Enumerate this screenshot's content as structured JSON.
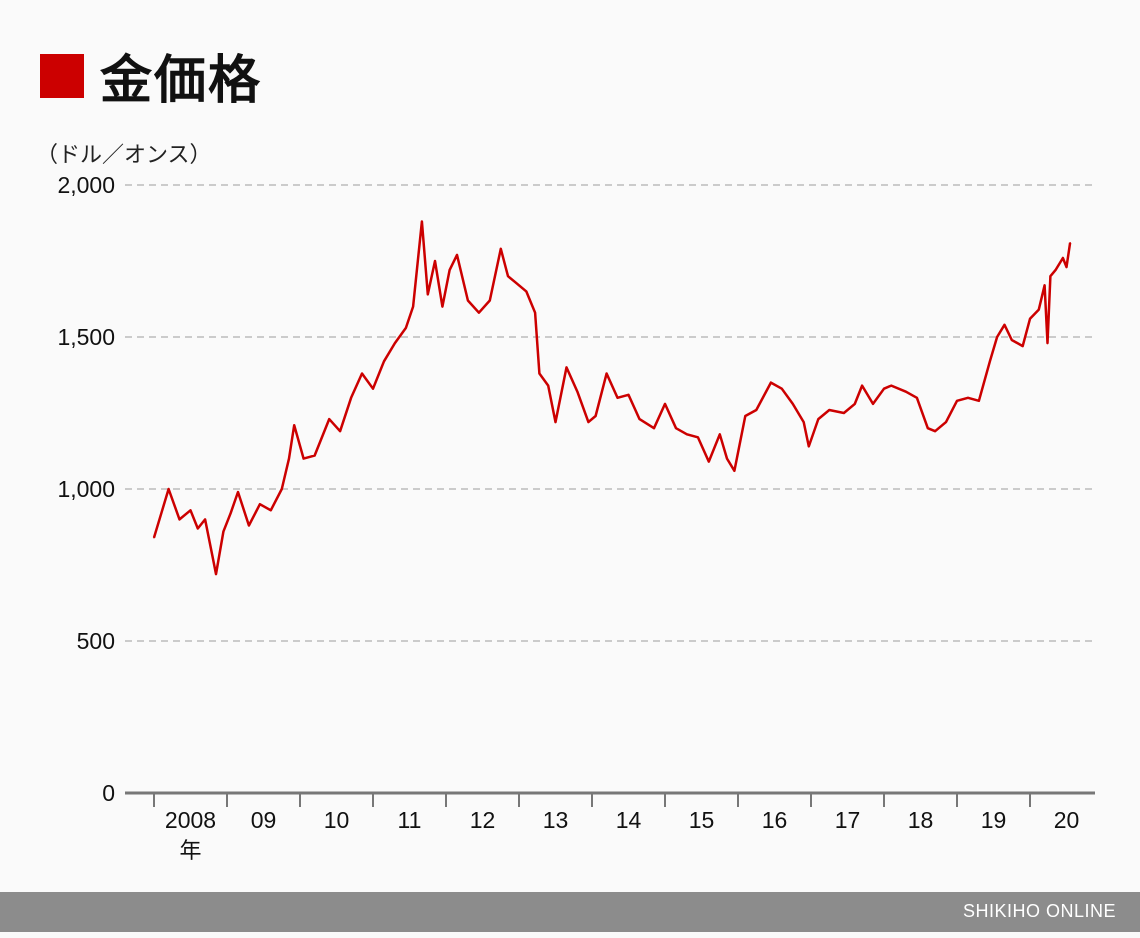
{
  "title": "金価格",
  "footer": "SHIKIHO ONLINE",
  "colors": {
    "accent": "#cc0000",
    "footer": "#8c8c8c"
  },
  "chart_data": {
    "type": "line",
    "title": "金価格",
    "ylabel": "（ドル／オンス）",
    "xlabel": "",
    "ylim": [
      0,
      2000
    ],
    "xlim": [
      2008,
      2021
    ],
    "grid": true,
    "yticks": [
      {
        "value": 0,
        "label": "0"
      },
      {
        "value": 500,
        "label": "500"
      },
      {
        "value": 1000,
        "label": "1,000"
      },
      {
        "value": 1500,
        "label": "1,500"
      },
      {
        "value": 2000,
        "label": "2,000"
      }
    ],
    "xticks": [
      "2008",
      "09",
      "10",
      "11",
      "12",
      "13",
      "14",
      "15",
      "16",
      "17",
      "18",
      "19",
      "20"
    ],
    "xtick_suffix": "年",
    "series": [
      {
        "name": "金価格",
        "color": "#cc0000",
        "x": [
          2008.0,
          2008.1,
          2008.2,
          2008.35,
          2008.5,
          2008.6,
          2008.7,
          2008.8,
          2008.85,
          2008.95,
          2009.05,
          2009.15,
          2009.3,
          2009.45,
          2009.6,
          2009.75,
          2009.85,
          2009.92,
          2010.05,
          2010.2,
          2010.4,
          2010.55,
          2010.7,
          2010.85,
          2011.0,
          2011.15,
          2011.3,
          2011.45,
          2011.55,
          2011.67,
          2011.75,
          2011.85,
          2011.95,
          2012.05,
          2012.15,
          2012.3,
          2012.45,
          2012.6,
          2012.75,
          2012.85,
          2012.95,
          2013.1,
          2013.22,
          2013.28,
          2013.4,
          2013.5,
          2013.65,
          2013.8,
          2013.95,
          2014.05,
          2014.2,
          2014.35,
          2014.5,
          2014.65,
          2014.85,
          2015.0,
          2015.15,
          2015.3,
          2015.45,
          2015.6,
          2015.75,
          2015.85,
          2015.95,
          2016.1,
          2016.25,
          2016.45,
          2016.6,
          2016.75,
          2016.9,
          2016.97,
          2017.1,
          2017.25,
          2017.45,
          2017.6,
          2017.7,
          2017.85,
          2018.0,
          2018.1,
          2018.3,
          2018.45,
          2018.6,
          2018.7,
          2018.85,
          2019.0,
          2019.15,
          2019.3,
          2019.45,
          2019.55,
          2019.65,
          2019.75,
          2019.9,
          2020.0,
          2020.12,
          2020.2,
          2020.24,
          2020.28,
          2020.35,
          2020.45,
          2020.5,
          2020.55
        ],
        "y": [
          840,
          920,
          1000,
          900,
          930,
          870,
          900,
          780,
          720,
          860,
          920,
          990,
          880,
          950,
          930,
          1000,
          1100,
          1210,
          1100,
          1110,
          1230,
          1190,
          1300,
          1380,
          1330,
          1420,
          1480,
          1530,
          1600,
          1880,
          1640,
          1750,
          1600,
          1720,
          1770,
          1620,
          1580,
          1620,
          1790,
          1700,
          1680,
          1650,
          1580,
          1380,
          1340,
          1220,
          1400,
          1320,
          1220,
          1240,
          1380,
          1300,
          1310,
          1230,
          1200,
          1280,
          1200,
          1180,
          1170,
          1090,
          1180,
          1100,
          1060,
          1240,
          1260,
          1350,
          1330,
          1280,
          1220,
          1140,
          1230,
          1260,
          1250,
          1280,
          1340,
          1280,
          1330,
          1340,
          1320,
          1300,
          1200,
          1190,
          1220,
          1290,
          1300,
          1290,
          1420,
          1500,
          1540,
          1490,
          1470,
          1560,
          1590,
          1670,
          1480,
          1700,
          1720,
          1760,
          1730,
          1810
        ]
      }
    ]
  }
}
